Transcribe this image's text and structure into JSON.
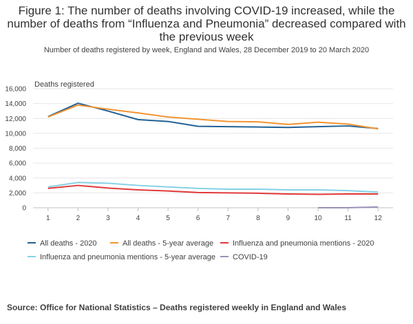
{
  "title": "Figure 1: The number of deaths involving COVID-19 increased, while the number of deaths from “Influenza and Pneumonia” decreased compared with the previous week",
  "subtitle": "Number of deaths registered by week, England and Wales, 28 December 2019 to 20 March 2020",
  "source": "Source: Office for National Statistics – Deaths registered weekly in England and Wales",
  "chart_data": {
    "type": "line",
    "ylabel": "Deaths registered",
    "xlabel": "",
    "x": [
      1,
      2,
      3,
      4,
      5,
      6,
      7,
      8,
      9,
      10,
      11,
      12
    ],
    "x_tick_labels": [
      "1",
      "2",
      "3",
      "4",
      "5",
      "6",
      "7",
      "8",
      "9",
      "10",
      "11",
      "12"
    ],
    "ylim": [
      0,
      16000
    ],
    "y_ticks": [
      0,
      2000,
      4000,
      6000,
      8000,
      10000,
      12000,
      14000,
      16000
    ],
    "y_tick_labels": [
      "0",
      "2,000",
      "4,000",
      "6,000",
      "8,000",
      "10,000",
      "12,000",
      "14,000",
      "16,000"
    ],
    "grid": "horizontal",
    "legend_position": "bottom",
    "series": [
      {
        "name": "All deaths - 2020",
        "color": "#206095",
        "x": [
          1,
          2,
          3,
          4,
          5,
          6,
          7,
          8,
          9,
          10,
          11,
          12
        ],
        "values": [
          12250,
          14050,
          13000,
          11850,
          11600,
          10950,
          10900,
          10850,
          10800,
          10900,
          11000,
          10650
        ]
      },
      {
        "name": "All deaths - 5-year average",
        "color": "#f39431",
        "x": [
          1,
          2,
          3,
          4,
          5,
          6,
          7,
          8,
          9,
          10,
          11,
          12
        ],
        "values": [
          12200,
          13800,
          13250,
          12750,
          12200,
          11900,
          11600,
          11550,
          11200,
          11500,
          11250,
          10600
        ]
      },
      {
        "name": "Influenza and pneumonia mentions - 2020",
        "color": "#e2383a",
        "x": [
          1,
          2,
          3,
          4,
          5,
          6,
          7,
          8,
          9,
          10,
          11,
          12
        ],
        "values": [
          2600,
          3000,
          2650,
          2400,
          2250,
          2050,
          2000,
          1950,
          1850,
          1800,
          1850,
          1850
        ]
      },
      {
        "name": "Influenza and pneumonia mentions - 5-year average",
        "color": "#84d1e6",
        "x": [
          1,
          2,
          3,
          4,
          5,
          6,
          7,
          8,
          9,
          10,
          11,
          12
        ],
        "values": [
          2800,
          3400,
          3300,
          3000,
          2800,
          2600,
          2500,
          2500,
          2400,
          2400,
          2300,
          2100
        ]
      },
      {
        "name": "COVID-19",
        "color": "#9b8fb8",
        "x": [
          10,
          11,
          12
        ],
        "values": [
          0,
          5,
          103
        ]
      }
    ]
  }
}
